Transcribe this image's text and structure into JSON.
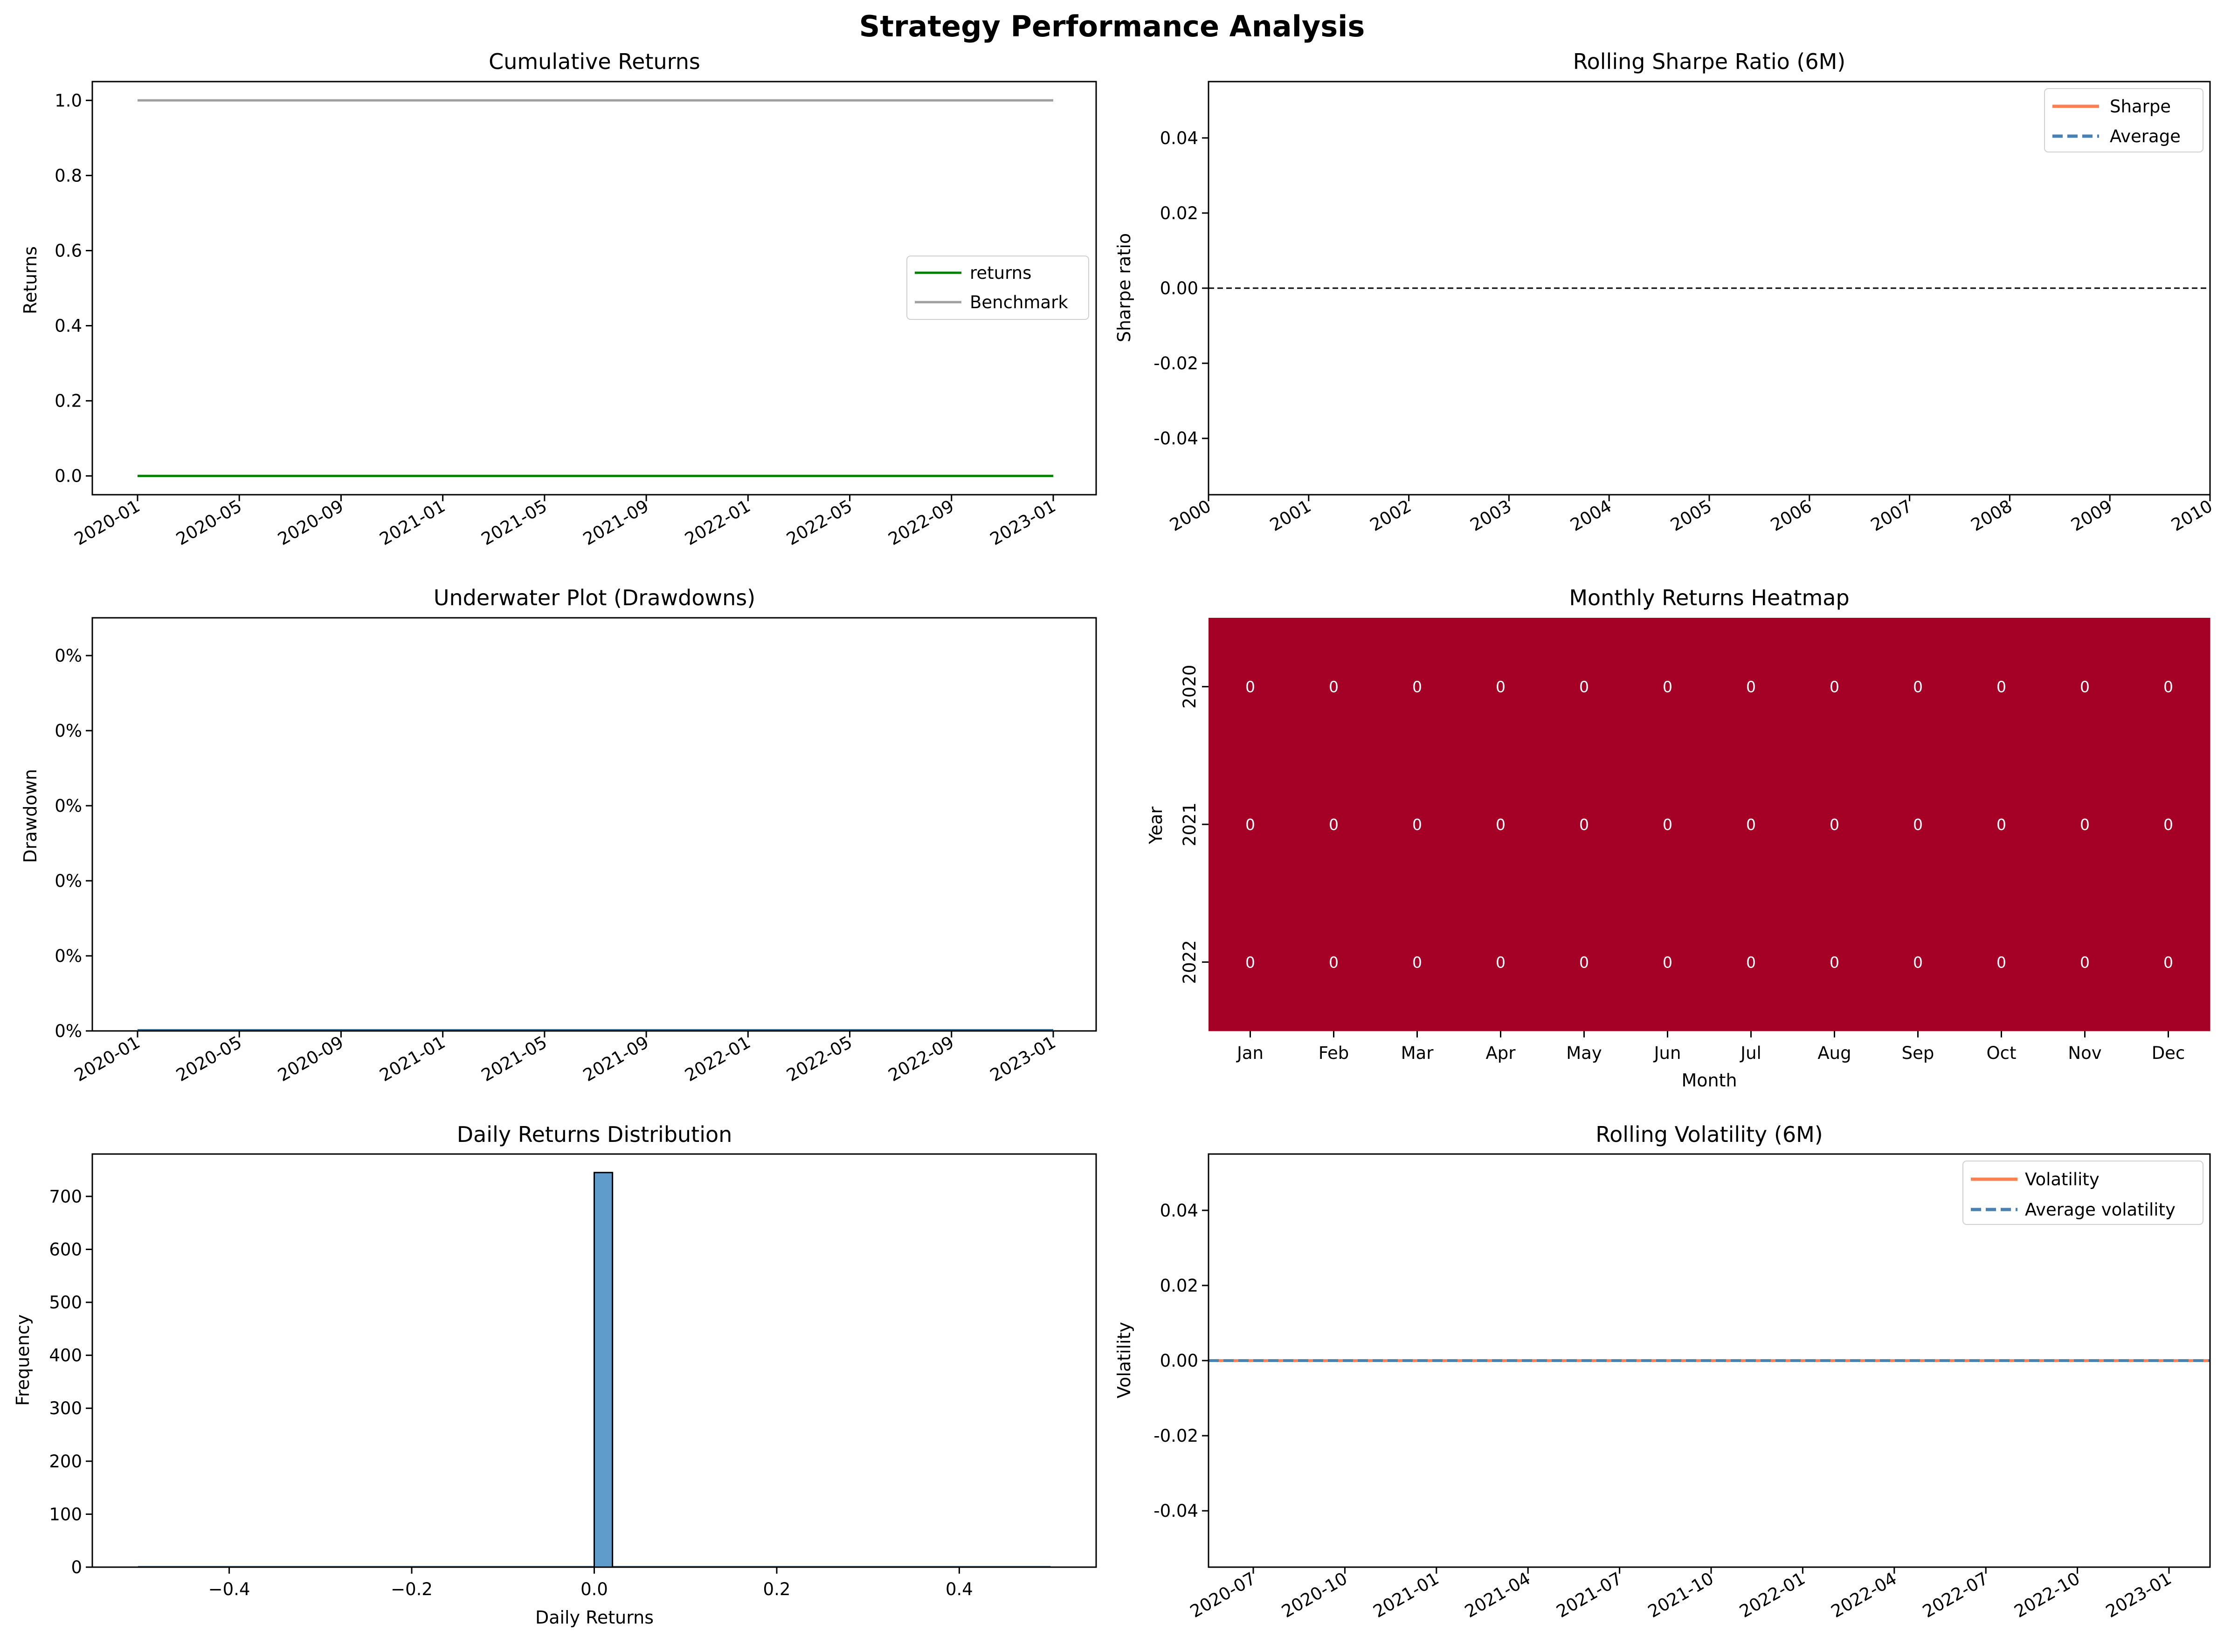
{
  "suptitle": "Strategy Performance Analysis",
  "colors": {
    "returns": "#008000",
    "benchmark": "#a0a0a0",
    "sharpe": "#ff7f50",
    "average": "#4682b4",
    "histogram": "#5f9ccb",
    "heatmap": "#a50026"
  },
  "chart_data": [
    {
      "id": "cumulative",
      "type": "line",
      "title": "Cumulative Returns",
      "xlabel": "",
      "ylabel": "Returns",
      "x_ticks": [
        "2020-01",
        "2020-05",
        "2020-09",
        "2021-01",
        "2021-05",
        "2021-09",
        "2022-01",
        "2022-05",
        "2022-09",
        "2023-01"
      ],
      "y_ticks": [
        "0.0",
        "0.2",
        "0.4",
        "0.6",
        "0.8",
        "1.0"
      ],
      "ylim": [
        -0.05,
        1.05
      ],
      "x_range": [
        "2020-01-01",
        "2022-12-31"
      ],
      "series": [
        {
          "name": "returns",
          "color": "#008000",
          "values": [
            0.0,
            0.0
          ]
        },
        {
          "name": "Benchmark",
          "color": "#a0a0a0",
          "values": [
            1.0,
            1.0
          ]
        }
      ],
      "legend": "center-right",
      "grid": false
    },
    {
      "id": "sharpe",
      "type": "line",
      "title": "Rolling Sharpe Ratio (6M)",
      "xlabel": "",
      "ylabel": "Sharpe ratio",
      "x_ticks": [
        "2000",
        "2001",
        "2002",
        "2003",
        "2004",
        "2005",
        "2006",
        "2007",
        "2008",
        "2009",
        "2010"
      ],
      "y_ticks": [
        "-0.04",
        "-0.02",
        "0.00",
        "0.02",
        "0.04"
      ],
      "ylim": [
        -0.055,
        0.055
      ],
      "hline": 0.0,
      "series": [
        {
          "name": "Sharpe",
          "color": "#ff7f50",
          "values": []
        },
        {
          "name": "Average",
          "color": "#4682b4",
          "values": []
        }
      ],
      "legend": "top-right",
      "grid": false
    },
    {
      "id": "underwater",
      "type": "area",
      "title": "Underwater Plot (Drawdowns)",
      "xlabel": "",
      "ylabel": "Drawdown",
      "x_ticks": [
        "2020-01",
        "2020-05",
        "2020-09",
        "2021-01",
        "2021-05",
        "2021-09",
        "2022-01",
        "2022-05",
        "2022-09",
        "2023-01"
      ],
      "y_ticks": [
        "0%",
        "0%",
        "0%",
        "0%",
        "0%",
        "0%"
      ],
      "values": [
        0.0,
        0.0
      ],
      "grid": false
    },
    {
      "id": "heatmap",
      "type": "heatmap",
      "title": "Monthly Returns Heatmap",
      "xlabel": "Month",
      "ylabel": "Year",
      "columns": [
        "Jan",
        "Feb",
        "Mar",
        "Apr",
        "May",
        "Jun",
        "Jul",
        "Aug",
        "Sep",
        "Oct",
        "Nov",
        "Dec"
      ],
      "rows": [
        "2020",
        "2021",
        "2022"
      ],
      "values": [
        [
          "0",
          "0",
          "0",
          "0",
          "0",
          "0",
          "0",
          "0",
          "0",
          "0",
          "0",
          "0"
        ],
        [
          "0",
          "0",
          "0",
          "0",
          "0",
          "0",
          "0",
          "0",
          "0",
          "0",
          "0",
          "0"
        ],
        [
          "0",
          "0",
          "0",
          "0",
          "0",
          "0",
          "0",
          "0",
          "0",
          "0",
          "0",
          "0"
        ]
      ]
    },
    {
      "id": "histogram",
      "type": "bar",
      "title": "Daily Returns Distribution",
      "xlabel": "Daily Returns",
      "ylabel": "Frequency",
      "x_ticks": [
        "−0.4",
        "−0.2",
        "0.0",
        "0.2",
        "0.4"
      ],
      "y_ticks": [
        "0",
        "100",
        "200",
        "300",
        "400",
        "500",
        "600",
        "700"
      ],
      "xlim": [
        -0.55,
        0.55
      ],
      "ylim": [
        0,
        780
      ],
      "bins": [
        {
          "x0": 0.0,
          "x1": 0.02,
          "count": 745
        }
      ],
      "grid": false
    },
    {
      "id": "volatility",
      "type": "line",
      "title": "Rolling Volatility (6M)",
      "xlabel": "",
      "ylabel": "Volatility",
      "x_ticks": [
        "2020-07",
        "2020-10",
        "2021-01",
        "2021-04",
        "2021-07",
        "2021-10",
        "2022-01",
        "2022-04",
        "2022-07",
        "2022-10",
        "2023-01"
      ],
      "y_ticks": [
        "-0.04",
        "-0.02",
        "0.00",
        "0.02",
        "0.04"
      ],
      "ylim": [
        -0.055,
        0.055
      ],
      "series": [
        {
          "name": "Volatility",
          "color": "#ff7f50",
          "values": [
            0.0,
            0.0
          ]
        },
        {
          "name": "Average volatility",
          "color": "#4682b4",
          "values": [
            0.0,
            0.0
          ]
        }
      ],
      "legend": "top-right",
      "grid": false
    }
  ]
}
